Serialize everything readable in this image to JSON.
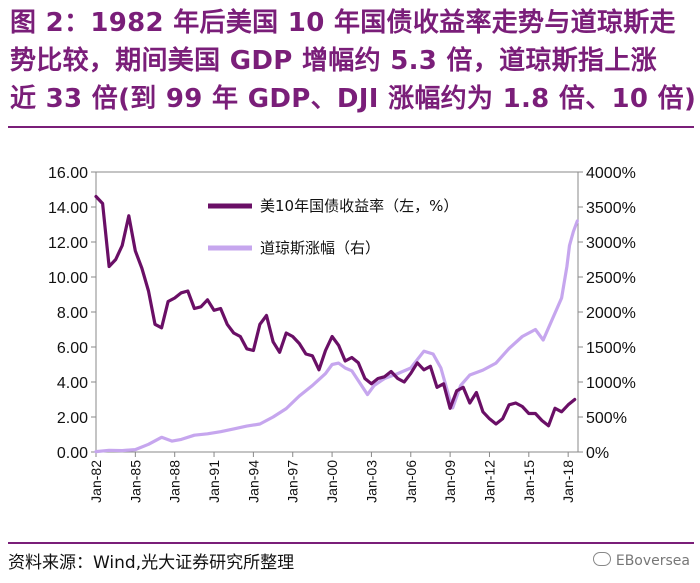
{
  "title": {
    "line1": "图 2：1982 年后美国 10 年国债收益率走势与道琼斯走",
    "line2": "势比较，期间美国 GDP 增幅约 5.3 倍，道琼斯指上涨",
    "line3": "近 33 倍(到 99 年 GDP、DJI 涨幅约为 1.8 倍、10 倍)"
  },
  "source": "资料来源：Wind,光大证券研究所整理",
  "watermark": "EBoversea",
  "colors": {
    "title": "#7a1e79",
    "yield": "#6a0f66",
    "dji": "#c6a6ee"
  },
  "chart_data": {
    "type": "line",
    "x_tick_labels": [
      "Jan-82",
      "Jan-85",
      "Jan-88",
      "Jan-91",
      "Jan-94",
      "Jan-97",
      "Jan-00",
      "Jan-03",
      "Jan-06",
      "Jan-09",
      "Jan-12",
      "Jan-15",
      "Jan-18"
    ],
    "x_range": [
      1982.0,
      2018.75
    ],
    "y_left": {
      "range": [
        0,
        16
      ],
      "ticks": [
        "0.00",
        "2.00",
        "4.00",
        "6.00",
        "8.00",
        "10.00",
        "12.00",
        "14.00",
        "16.00"
      ]
    },
    "y_right": {
      "range": [
        0,
        4000
      ],
      "ticks": [
        "0%",
        "500%",
        "1000%",
        "1500%",
        "2000%",
        "2500%",
        "3000%",
        "3500%",
        "4000%"
      ]
    },
    "series": [
      {
        "name": "美10年国债收益率（左，%）",
        "axis": "left",
        "x": [
          1982.0,
          1982.5,
          1983.0,
          1983.5,
          1984.0,
          1984.5,
          1985.0,
          1985.5,
          1986.0,
          1986.5,
          1987.0,
          1987.5,
          1988.0,
          1988.5,
          1989.0,
          1989.5,
          1990.0,
          1990.5,
          1991.0,
          1991.5,
          1992.0,
          1992.5,
          1993.0,
          1993.5,
          1994.0,
          1994.5,
          1995.0,
          1995.5,
          1996.0,
          1996.5,
          1997.0,
          1997.5,
          1998.0,
          1998.5,
          1999.0,
          1999.5,
          2000.0,
          2000.5,
          2001.0,
          2001.5,
          2002.0,
          2002.5,
          2003.0,
          2003.5,
          2004.0,
          2004.5,
          2005.0,
          2005.5,
          2006.0,
          2006.5,
          2007.0,
          2007.5,
          2008.0,
          2008.5,
          2009.0,
          2009.5,
          2010.0,
          2010.5,
          2011.0,
          2011.5,
          2012.0,
          2012.5,
          2013.0,
          2013.5,
          2014.0,
          2014.5,
          2015.0,
          2015.5,
          2016.0,
          2016.5,
          2017.0,
          2017.5,
          2018.0,
          2018.5
        ],
        "values": [
          14.6,
          14.2,
          10.6,
          11.0,
          11.8,
          13.5,
          11.5,
          10.5,
          9.2,
          7.3,
          7.1,
          8.6,
          8.8,
          9.1,
          9.2,
          8.2,
          8.3,
          8.7,
          8.1,
          8.2,
          7.3,
          6.8,
          6.6,
          5.9,
          5.8,
          7.3,
          7.8,
          6.3,
          5.7,
          6.8,
          6.6,
          6.2,
          5.6,
          5.5,
          4.7,
          5.8,
          6.6,
          6.1,
          5.2,
          5.4,
          5.1,
          4.2,
          3.9,
          4.2,
          4.3,
          4.6,
          4.2,
          4.0,
          4.5,
          5.1,
          4.7,
          4.9,
          3.7,
          3.9,
          2.5,
          3.5,
          3.7,
          2.8,
          3.4,
          2.3,
          1.9,
          1.6,
          1.9,
          2.7,
          2.8,
          2.6,
          2.2,
          2.2,
          1.8,
          1.5,
          2.5,
          2.3,
          2.7,
          3.0
        ]
      },
      {
        "name": "道琼斯涨幅（右）",
        "axis": "right",
        "x": [
          1982.0,
          1983.0,
          1984.0,
          1985.0,
          1986.0,
          1987.0,
          1987.8,
          1988.5,
          1989.5,
          1990.5,
          1991.5,
          1992.5,
          1993.5,
          1994.5,
          1995.5,
          1996.5,
          1997.5,
          1998.5,
          1999.5,
          2000.0,
          2000.5,
          2001.0,
          2001.5,
          2002.0,
          2002.7,
          2003.2,
          2004.0,
          2005.0,
          2006.0,
          2007.0,
          2007.7,
          2008.3,
          2008.9,
          2009.2,
          2009.8,
          2010.5,
          2011.5,
          2012.5,
          2013.5,
          2014.5,
          2015.5,
          2016.1,
          2016.8,
          2017.5,
          2017.9,
          2018.1,
          2018.4,
          2018.7
        ],
        "values": [
          5,
          25,
          20,
          35,
          110,
          210,
          155,
          180,
          240,
          260,
          290,
          330,
          370,
          400,
          500,
          620,
          800,
          950,
          1120,
          1250,
          1270,
          1200,
          1160,
          1020,
          820,
          950,
          1050,
          1120,
          1200,
          1440,
          1400,
          1200,
          800,
          630,
          950,
          1100,
          1170,
          1270,
          1480,
          1650,
          1750,
          1600,
          1900,
          2200,
          2650,
          2950,
          3150,
          3300
        ]
      }
    ]
  },
  "legend": {
    "yield_label": "美10年国债收益率（左，%）",
    "dji_label": "道琼斯涨幅（右）"
  }
}
